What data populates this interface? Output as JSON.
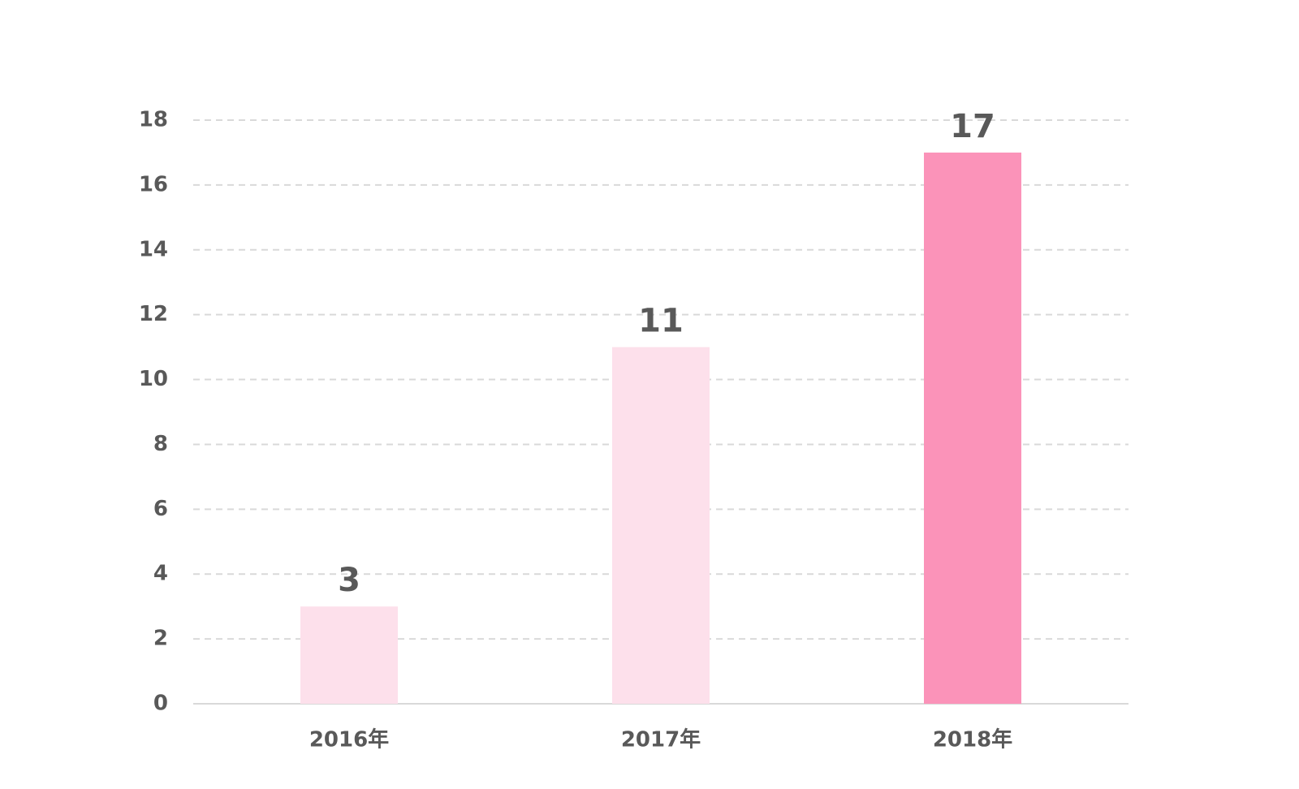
{
  "chart_data": {
    "type": "bar",
    "categories": [
      "2016年",
      "2017年",
      "2018年"
    ],
    "values": [
      3,
      11,
      17
    ],
    "colors": [
      "#fde0eb",
      "#fde0eb",
      "#fb93b9"
    ],
    "ylim": [
      0,
      18
    ],
    "yticks": [
      0,
      2,
      4,
      6,
      8,
      10,
      12,
      14,
      16,
      18
    ],
    "grid": true,
    "data_labels": true
  }
}
